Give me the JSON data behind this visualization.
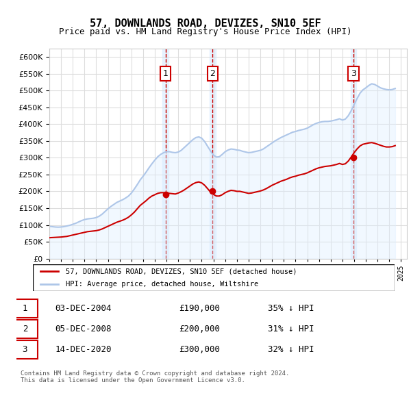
{
  "title": "57, DOWNLANDS ROAD, DEVIZES, SN10 5EF",
  "subtitle": "Price paid vs. HM Land Registry's House Price Index (HPI)",
  "ylabel": "",
  "ylim": [
    0,
    625000
  ],
  "yticks": [
    0,
    50000,
    100000,
    150000,
    200000,
    250000,
    300000,
    350000,
    400000,
    450000,
    500000,
    550000,
    600000
  ],
  "background_color": "#ffffff",
  "grid_color": "#dddddd",
  "hpi_color": "#aec6e8",
  "price_color": "#cc0000",
  "vline_color": "#cc0000",
  "shade_color": "#ddeeff",
  "transactions": [
    {
      "date_num": 2004.92,
      "price": 190000,
      "label": "1"
    },
    {
      "date_num": 2008.92,
      "price": 200000,
      "label": "2"
    },
    {
      "date_num": 2020.95,
      "price": 300000,
      "label": "3"
    }
  ],
  "legend_entries": [
    {
      "label": "57, DOWNLANDS ROAD, DEVIZES, SN10 5EF (detached house)",
      "color": "#cc0000"
    },
    {
      "label": "HPI: Average price, detached house, Wiltshire",
      "color": "#aec6e8"
    }
  ],
  "table_rows": [
    {
      "num": "1",
      "date": "03-DEC-2004",
      "price": "£190,000",
      "hpi": "35% ↓ HPI"
    },
    {
      "num": "2",
      "date": "05-DEC-2008",
      "price": "£200,000",
      "hpi": "31% ↓ HPI"
    },
    {
      "num": "3",
      "date": "14-DEC-2020",
      "price": "£300,000",
      "hpi": "32% ↓ HPI"
    }
  ],
  "footer": "Contains HM Land Registry data © Crown copyright and database right 2024.\nThis data is licensed under the Open Government Licence v3.0.",
  "hpi_data": {
    "years": [
      1995.0,
      1995.25,
      1995.5,
      1995.75,
      1996.0,
      1996.25,
      1996.5,
      1996.75,
      1997.0,
      1997.25,
      1997.5,
      1997.75,
      1998.0,
      1998.25,
      1998.5,
      1998.75,
      1999.0,
      1999.25,
      1999.5,
      1999.75,
      2000.0,
      2000.25,
      2000.5,
      2000.75,
      2001.0,
      2001.25,
      2001.5,
      2001.75,
      2002.0,
      2002.25,
      2002.5,
      2002.75,
      2003.0,
      2003.25,
      2003.5,
      2003.75,
      2004.0,
      2004.25,
      2004.5,
      2004.75,
      2005.0,
      2005.25,
      2005.5,
      2005.75,
      2006.0,
      2006.25,
      2006.5,
      2006.75,
      2007.0,
      2007.25,
      2007.5,
      2007.75,
      2008.0,
      2008.25,
      2008.5,
      2008.75,
      2009.0,
      2009.25,
      2009.5,
      2009.75,
      2010.0,
      2010.25,
      2010.5,
      2010.75,
      2011.0,
      2011.25,
      2011.5,
      2011.75,
      2012.0,
      2012.25,
      2012.5,
      2012.75,
      2013.0,
      2013.25,
      2013.5,
      2013.75,
      2014.0,
      2014.25,
      2014.5,
      2014.75,
      2015.0,
      2015.25,
      2015.5,
      2015.75,
      2016.0,
      2016.25,
      2016.5,
      2016.75,
      2017.0,
      2017.25,
      2017.5,
      2017.75,
      2018.0,
      2018.25,
      2018.5,
      2018.75,
      2019.0,
      2019.25,
      2019.5,
      2019.75,
      2020.0,
      2020.25,
      2020.5,
      2020.75,
      2021.0,
      2021.25,
      2021.5,
      2021.75,
      2022.0,
      2022.25,
      2022.5,
      2022.75,
      2023.0,
      2023.25,
      2023.5,
      2023.75,
      2024.0,
      2024.25,
      2024.5
    ],
    "values": [
      96000,
      95000,
      94000,
      93500,
      94000,
      95000,
      97000,
      99000,
      102000,
      105000,
      109000,
      113000,
      116000,
      118000,
      119000,
      120000,
      122000,
      126000,
      132000,
      140000,
      148000,
      155000,
      161000,
      167000,
      171000,
      175000,
      180000,
      186000,
      195000,
      207000,
      220000,
      234000,
      245000,
      257000,
      270000,
      282000,
      293000,
      303000,
      310000,
      315000,
      318000,
      318000,
      316000,
      315000,
      317000,
      322000,
      330000,
      338000,
      346000,
      354000,
      360000,
      362000,
      358000,
      348000,
      334000,
      320000,
      308000,
      302000,
      303000,
      310000,
      318000,
      323000,
      326000,
      325000,
      323000,
      322000,
      319000,
      317000,
      315000,
      316000,
      318000,
      320000,
      322000,
      326000,
      332000,
      338000,
      344000,
      350000,
      355000,
      360000,
      364000,
      368000,
      372000,
      376000,
      378000,
      381000,
      383000,
      385000,
      388000,
      393000,
      398000,
      402000,
      405000,
      407000,
      408000,
      408000,
      409000,
      411000,
      413000,
      416000,
      412000,
      415000,
      425000,
      440000,
      458000,
      476000,
      492000,
      502000,
      508000,
      515000,
      520000,
      518000,
      513000,
      508000,
      505000,
      503000,
      502000,
      503000,
      506000
    ]
  },
  "price_data": {
    "years": [
      1995.0,
      1995.25,
      1995.5,
      1995.75,
      1996.0,
      1996.25,
      1996.5,
      1996.75,
      1997.0,
      1997.25,
      1997.5,
      1997.75,
      1998.0,
      1998.25,
      1998.5,
      1998.75,
      1999.0,
      1999.25,
      1999.5,
      1999.75,
      2000.0,
      2000.25,
      2000.5,
      2000.75,
      2001.0,
      2001.25,
      2001.5,
      2001.75,
      2002.0,
      2002.25,
      2002.5,
      2002.75,
      2003.0,
      2003.25,
      2003.5,
      2003.75,
      2004.0,
      2004.25,
      2004.5,
      2004.75,
      2005.0,
      2005.25,
      2005.5,
      2005.75,
      2006.0,
      2006.25,
      2006.5,
      2006.75,
      2007.0,
      2007.25,
      2007.5,
      2007.75,
      2008.0,
      2008.25,
      2008.5,
      2008.75,
      2009.0,
      2009.25,
      2009.5,
      2009.75,
      2010.0,
      2010.25,
      2010.5,
      2010.75,
      2011.0,
      2011.25,
      2011.5,
      2011.75,
      2012.0,
      2012.25,
      2012.5,
      2012.75,
      2013.0,
      2013.25,
      2013.5,
      2013.75,
      2014.0,
      2014.25,
      2014.5,
      2014.75,
      2015.0,
      2015.25,
      2015.5,
      2015.75,
      2016.0,
      2016.25,
      2016.5,
      2016.75,
      2017.0,
      2017.25,
      2017.5,
      2017.75,
      2018.0,
      2018.25,
      2018.5,
      2018.75,
      2019.0,
      2019.25,
      2019.5,
      2019.75,
      2020.0,
      2020.25,
      2020.5,
      2020.75,
      2021.0,
      2021.25,
      2021.5,
      2021.75,
      2022.0,
      2022.25,
      2022.5,
      2022.75,
      2023.0,
      2023.25,
      2023.5,
      2023.75,
      2024.0,
      2024.25,
      2024.5
    ],
    "values": [
      62000,
      62500,
      63000,
      63500,
      64000,
      65000,
      66000,
      68000,
      70000,
      72000,
      74000,
      76000,
      78000,
      80000,
      81000,
      82000,
      83000,
      85000,
      88000,
      92000,
      96000,
      100000,
      104000,
      108000,
      111000,
      114000,
      118000,
      123000,
      130000,
      138000,
      148000,
      158000,
      165000,
      172000,
      180000,
      186000,
      190000,
      194000,
      196000,
      196000,
      195000,
      194000,
      193000,
      192000,
      195000,
      199000,
      204000,
      210000,
      216000,
      222000,
      226000,
      228000,
      225000,
      218000,
      208000,
      198000,
      191000,
      186000,
      186000,
      190000,
      196000,
      200000,
      203000,
      202000,
      200000,
      200000,
      198000,
      196000,
      194000,
      195000,
      197000,
      199000,
      201000,
      204000,
      208000,
      213000,
      218000,
      222000,
      226000,
      230000,
      233000,
      236000,
      240000,
      243000,
      245000,
      248000,
      250000,
      252000,
      255000,
      259000,
      263000,
      267000,
      270000,
      272000,
      274000,
      275000,
      276000,
      278000,
      280000,
      283000,
      280000,
      282000,
      290000,
      302000,
      315000,
      326000,
      335000,
      340000,
      342000,
      344000,
      345000,
      343000,
      340000,
      337000,
      334000,
      332000,
      332000,
      333000,
      336000
    ]
  }
}
